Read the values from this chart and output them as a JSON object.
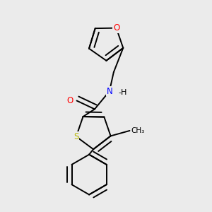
{
  "bg_color": "#ebebeb",
  "bond_color": "#000000",
  "S_color": "#b8b800",
  "O_color": "#ff0000",
  "N_color": "#0000ff",
  "C_color": "#000000",
  "line_width": 1.4,
  "font_size": 8.5,
  "fig_width": 3.0,
  "fig_height": 3.0,
  "dpi": 100,
  "xlim": [
    0.0,
    1.0
  ],
  "ylim": [
    0.0,
    1.0
  ]
}
